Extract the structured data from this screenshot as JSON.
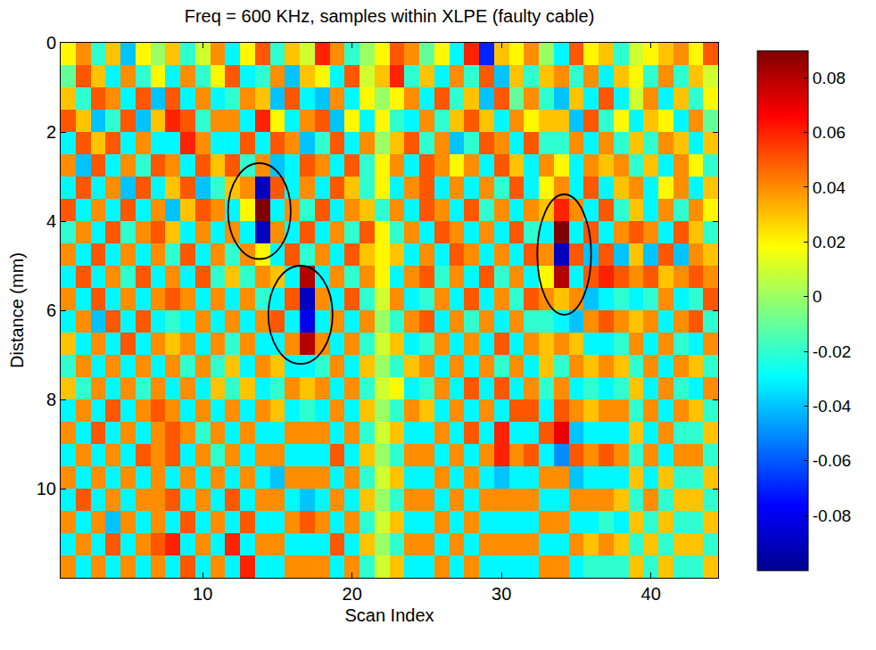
{
  "chart_data": {
    "type": "heatmap",
    "title": "Freq = 600 KHz, samples within XLPE (faulty cable)",
    "x_label": "Scan Index",
    "y_label": "Distance (mm)",
    "x": [
      1,
      2,
      3,
      4,
      5,
      6,
      7,
      8,
      9,
      10,
      11,
      12,
      13,
      14,
      15,
      16,
      17,
      18,
      19,
      20,
      21,
      22,
      23,
      24,
      25,
      26,
      27,
      28,
      29,
      30,
      31,
      32,
      33,
      34,
      35,
      36,
      37,
      38,
      39,
      40,
      41,
      42,
      43,
      44
    ],
    "y": [
      0.25,
      0.75,
      1.25,
      1.75,
      2.25,
      2.75,
      3.25,
      3.75,
      4.25,
      4.75,
      5.25,
      5.75,
      6.25,
      6.75,
      7.25,
      7.75,
      8.25,
      8.75,
      9.25,
      9.75,
      10.25,
      10.75,
      11.25,
      11.75
    ],
    "xlim": [
      0.5,
      44.5
    ],
    "ylim": [
      12,
      0
    ],
    "xticks": [
      10,
      20,
      30,
      40
    ],
    "yticks": [
      0,
      2,
      4,
      6,
      8,
      10
    ],
    "zlim": [
      -0.1,
      0.09
    ],
    "zticks": [
      -0.08,
      -0.06,
      -0.04,
      -0.02,
      0,
      0.02,
      0.04,
      0.06,
      0.08
    ],
    "highlights": [
      {
        "x0": 11.7,
        "x1": 15.9,
        "y0": 2.7,
        "y1": 4.85
      },
      {
        "x0": 14.4,
        "x1": 18.7,
        "y0": 5.0,
        "y1": 7.2
      },
      {
        "x0": 32.4,
        "x1": 36.0,
        "y0": 3.4,
        "y1": 6.1
      }
    ],
    "z": [
      [
        0.02,
        0.04,
        -0.02,
        0.03,
        -0.04,
        0.02,
        0.0,
        0.03,
        -0.02,
        0.01,
        0.04,
        -0.03,
        0.02,
        0.05,
        -0.02,
        0.03,
        0.01,
        0.06,
        0.04,
        -0.02,
        0.0,
        0.02,
        0.05,
        0.04,
        -0.01,
        0.02,
        -0.03,
        0.06,
        -0.07,
        0.03,
        0.02,
        0.04,
        0.0,
        -0.03,
        0.05,
        0.02,
        0.03,
        -0.02,
        0.01,
        0.02,
        0.03,
        0.04,
        0.02,
        0.05
      ],
      [
        -0.01,
        0.05,
        0.03,
        -0.03,
        0.04,
        -0.02,
        0.02,
        -0.03,
        0.04,
        -0.02,
        0.02,
        0.05,
        -0.03,
        -0.02,
        0.04,
        -0.04,
        0.03,
        0.02,
        -0.03,
        0.05,
        0.01,
        0.03,
        0.06,
        -0.02,
        0.03,
        -0.03,
        0.04,
        -0.02,
        0.05,
        -0.04,
        0.03,
        -0.02,
        0.03,
        0.04,
        -0.02,
        0.04,
        -0.03,
        0.03,
        0.02,
        -0.02,
        0.04,
        -0.02,
        0.03,
        0.01
      ],
      [
        0.03,
        -0.02,
        0.05,
        0.04,
        -0.03,
        0.05,
        -0.04,
        0.05,
        -0.03,
        0.04,
        -0.03,
        -0.02,
        0.04,
        0.03,
        -0.04,
        0.05,
        -0.03,
        -0.04,
        0.04,
        -0.03,
        0.02,
        0.0,
        0.02,
        0.04,
        -0.03,
        0.05,
        -0.02,
        0.03,
        -0.04,
        0.05,
        -0.01,
        0.04,
        -0.02,
        -0.04,
        0.03,
        -0.03,
        0.05,
        -0.03,
        0.01,
        0.04,
        -0.03,
        0.03,
        -0.02,
        0.02
      ],
      [
        0.05,
        0.03,
        -0.04,
        -0.02,
        0.05,
        -0.04,
        0.03,
        0.06,
        0.05,
        -0.02,
        0.04,
        0.04,
        -0.03,
        0.06,
        0.02,
        -0.03,
        0.04,
        0.05,
        -0.04,
        0.02,
        -0.03,
        0.02,
        -0.02,
        -0.03,
        0.04,
        -0.02,
        0.03,
        0.05,
        0.03,
        -0.03,
        0.04,
        0.02,
        0.03,
        0.03,
        -0.04,
        0.05,
        -0.02,
        0.02,
        -0.03,
        0.03,
        0.02,
        -0.03,
        0.04,
        -0.01
      ],
      [
        -0.03,
        0.05,
        0.03,
        0.05,
        -0.03,
        0.04,
        -0.03,
        -0.03,
        0.06,
        0.04,
        -0.03,
        -0.03,
        0.05,
        -0.03,
        0.05,
        0.04,
        -0.04,
        -0.02,
        0.05,
        -0.03,
        0.04,
        0.0,
        0.03,
        0.05,
        -0.02,
        0.04,
        -0.04,
        -0.02,
        0.05,
        0.04,
        -0.03,
        0.05,
        -0.02,
        -0.02,
        0.04,
        -0.03,
        0.04,
        -0.02,
        0.03,
        -0.02,
        0.04,
        0.03,
        -0.03,
        0.03
      ],
      [
        0.04,
        -0.04,
        0.05,
        -0.03,
        0.04,
        -0.02,
        0.05,
        0.04,
        -0.03,
        0.05,
        0.03,
        0.05,
        -0.02,
        0.04,
        -0.04,
        -0.03,
        0.05,
        0.04,
        -0.03,
        0.05,
        -0.02,
        0.02,
        0.04,
        -0.03,
        0.05,
        0.04,
        0.02,
        0.04,
        -0.03,
        0.05,
        0.03,
        -0.03,
        0.04,
        0.02,
        -0.03,
        0.04,
        0.03,
        0.04,
        -0.02,
        0.03,
        -0.03,
        0.04,
        0.02,
        -0.02
      ],
      [
        -0.03,
        0.05,
        -0.03,
        0.04,
        -0.04,
        0.05,
        -0.03,
        0.03,
        0.05,
        -0.04,
        -0.02,
        0.03,
        0.04,
        -0.09,
        0.05,
        -0.03,
        0.04,
        -0.03,
        0.05,
        0.03,
        -0.02,
        0.02,
        -0.03,
        0.04,
        0.05,
        -0.03,
        0.04,
        -0.03,
        0.04,
        -0.02,
        0.05,
        -0.03,
        0.02,
        0.04,
        -0.03,
        0.05,
        -0.03,
        0.03,
        0.04,
        -0.03,
        0.02,
        0.04,
        -0.03,
        0.03
      ],
      [
        0.05,
        -0.03,
        0.04,
        -0.03,
        0.05,
        -0.03,
        0.04,
        -0.04,
        0.03,
        0.05,
        0.04,
        -0.03,
        0.02,
        0.09,
        -0.03,
        0.04,
        -0.02,
        0.05,
        -0.03,
        0.04,
        0.03,
        -0.02,
        0.04,
        -0.03,
        0.05,
        0.04,
        -0.03,
        0.05,
        -0.02,
        0.04,
        -0.03,
        0.04,
        0.03,
        0.06,
        0.04,
        -0.03,
        0.05,
        -0.02,
        0.03,
        -0.03,
        0.04,
        -0.02,
        0.04,
        0.02
      ],
      [
        -0.02,
        0.04,
        -0.03,
        0.05,
        -0.02,
        0.04,
        0.05,
        0.03,
        -0.03,
        0.04,
        -0.03,
        0.04,
        -0.03,
        -0.09,
        0.04,
        -0.03,
        0.05,
        -0.03,
        0.04,
        -0.02,
        0.05,
        0.02,
        -0.02,
        0.04,
        -0.03,
        0.05,
        0.04,
        -0.03,
        0.04,
        -0.03,
        0.05,
        -0.02,
        -0.03,
        0.09,
        -0.03,
        0.05,
        -0.03,
        0.04,
        0.05,
        0.04,
        -0.03,
        0.05,
        0.03,
        -0.02
      ],
      [
        0.04,
        -0.03,
        0.05,
        -0.03,
        0.04,
        -0.03,
        0.04,
        -0.02,
        0.05,
        -0.03,
        0.04,
        -0.02,
        0.04,
        0.02,
        -0.03,
        0.05,
        -0.02,
        0.04,
        -0.03,
        0.05,
        0.03,
        0.02,
        0.03,
        -0.03,
        0.04,
        -0.03,
        0.05,
        0.04,
        -0.03,
        0.04,
        -0.03,
        0.05,
        0.04,
        -0.09,
        0.05,
        -0.04,
        0.05,
        -0.04,
        0.03,
        -0.04,
        0.05,
        -0.04,
        0.04,
        0.03
      ],
      [
        -0.03,
        0.05,
        -0.03,
        0.04,
        -0.02,
        0.05,
        -0.03,
        0.04,
        -0.03,
        0.05,
        -0.02,
        0.03,
        -0.02,
        0.04,
        0.03,
        -0.03,
        0.08,
        -0.03,
        0.04,
        -0.02,
        0.04,
        0.02,
        -0.03,
        0.04,
        0.05,
        -0.02,
        0.04,
        -0.03,
        0.05,
        -0.02,
        0.04,
        -0.03,
        0.02,
        0.08,
        -0.03,
        0.05,
        0.06,
        0.05,
        0.04,
        0.05,
        0.03,
        0.04,
        0.05,
        0.04
      ],
      [
        0.04,
        -0.03,
        0.05,
        -0.03,
        0.04,
        -0.03,
        0.04,
        0.05,
        0.04,
        -0.03,
        0.04,
        -0.03,
        0.04,
        -0.02,
        -0.03,
        0.05,
        -0.09,
        0.04,
        -0.03,
        0.05,
        -0.02,
        0.01,
        0.04,
        -0.03,
        -0.02,
        0.04,
        -0.03,
        0.05,
        -0.03,
        0.04,
        -0.02,
        0.05,
        0.04,
        0.03,
        0.04,
        -0.04,
        -0.03,
        -0.02,
        -0.03,
        -0.02,
        0.04,
        -0.03,
        -0.02,
        0.05
      ],
      [
        -0.03,
        0.04,
        -0.04,
        0.05,
        -0.03,
        0.05,
        -0.03,
        -0.02,
        -0.03,
        0.04,
        -0.03,
        0.04,
        -0.03,
        0.04,
        0.05,
        -0.03,
        -0.08,
        -0.03,
        0.04,
        -0.03,
        0.04,
        0.0,
        -0.02,
        0.04,
        0.05,
        -0.03,
        0.04,
        -0.02,
        0.04,
        -0.03,
        0.04,
        -0.02,
        -0.02,
        -0.03,
        -0.04,
        0.04,
        0.05,
        0.04,
        0.03,
        0.04,
        -0.03,
        0.04,
        0.05,
        -0.02
      ],
      [
        0.03,
        -0.03,
        0.04,
        -0.03,
        0.05,
        -0.03,
        0.04,
        0.03,
        0.04,
        -0.03,
        0.04,
        -0.02,
        0.04,
        -0.03,
        -0.03,
        0.04,
        0.08,
        0.04,
        -0.03,
        0.04,
        -0.02,
        0.01,
        0.03,
        -0.03,
        -0.02,
        0.04,
        -0.03,
        0.04,
        -0.03,
        0.05,
        -0.03,
        0.04,
        0.03,
        0.04,
        0.03,
        -0.03,
        -0.03,
        -0.02,
        0.04,
        -0.03,
        0.04,
        -0.02,
        -0.03,
        0.04
      ],
      [
        -0.02,
        0.04,
        -0.03,
        0.04,
        -0.03,
        0.04,
        -0.03,
        0.04,
        -0.02,
        0.04,
        -0.02,
        0.03,
        -0.03,
        0.04,
        0.03,
        -0.03,
        -0.03,
        -0.02,
        0.04,
        -0.03,
        0.03,
        0.0,
        -0.02,
        0.03,
        0.04,
        -0.03,
        0.04,
        -0.03,
        0.04,
        -0.02,
        0.04,
        -0.03,
        0.03,
        -0.02,
        0.04,
        0.03,
        0.04,
        0.03,
        -0.02,
        0.04,
        -0.03,
        0.04,
        0.03,
        -0.02
      ],
      [
        0.03,
        -0.02,
        0.04,
        -0.03,
        0.04,
        -0.02,
        0.04,
        -0.03,
        0.04,
        -0.03,
        0.03,
        -0.02,
        0.03,
        -0.03,
        -0.02,
        0.04,
        0.03,
        0.04,
        -0.03,
        0.04,
        -0.02,
        0.01,
        0.02,
        -0.03,
        -0.02,
        0.04,
        -0.03,
        0.05,
        -0.03,
        0.05,
        -0.03,
        0.04,
        -0.02,
        0.04,
        -0.03,
        -0.02,
        -0.03,
        -0.02,
        0.03,
        -0.03,
        0.04,
        -0.02,
        -0.03,
        0.04
      ],
      [
        -0.03,
        0.04,
        -0.03,
        0.05,
        -0.03,
        0.04,
        0.05,
        0.04,
        -0.03,
        0.04,
        -0.03,
        0.04,
        -0.03,
        0.04,
        0.03,
        -0.03,
        -0.02,
        -0.03,
        0.04,
        -0.03,
        0.03,
        0.0,
        -0.02,
        0.04,
        0.03,
        -0.03,
        0.04,
        -0.03,
        0.04,
        -0.03,
        0.05,
        0.05,
        -0.03,
        0.05,
        0.04,
        0.03,
        0.04,
        0.04,
        -0.02,
        0.04,
        -0.03,
        0.04,
        0.03,
        -0.02
      ],
      [
        0.04,
        -0.03,
        0.05,
        -0.03,
        0.04,
        -0.03,
        0.04,
        0.05,
        0.04,
        -0.02,
        0.04,
        -0.03,
        0.04,
        -0.03,
        -0.03,
        0.04,
        0.04,
        0.04,
        -0.03,
        0.04,
        -0.02,
        0.01,
        0.03,
        -0.03,
        -0.03,
        0.04,
        -0.03,
        0.05,
        -0.03,
        0.06,
        -0.03,
        -0.03,
        0.05,
        0.07,
        -0.04,
        -0.03,
        -0.03,
        -0.03,
        0.03,
        -0.03,
        0.04,
        -0.02,
        -0.02,
        0.03
      ],
      [
        -0.03,
        0.04,
        -0.03,
        0.04,
        -0.03,
        0.05,
        0.04,
        0.05,
        -0.03,
        0.04,
        -0.02,
        0.04,
        -0.03,
        0.04,
        0.04,
        -0.03,
        -0.03,
        -0.03,
        0.05,
        -0.03,
        0.03,
        0.0,
        -0.02,
        0.04,
        0.04,
        -0.03,
        0.04,
        -0.03,
        0.04,
        0.06,
        0.04,
        0.05,
        -0.03,
        -0.05,
        0.05,
        0.04,
        0.05,
        0.04,
        -0.02,
        0.04,
        -0.03,
        0.04,
        0.04,
        -0.02
      ],
      [
        0.04,
        -0.03,
        0.04,
        -0.03,
        0.04,
        -0.03,
        0.04,
        -0.03,
        0.04,
        -0.03,
        0.04,
        -0.03,
        0.04,
        -0.03,
        -0.04,
        0.04,
        0.04,
        0.04,
        -0.03,
        0.04,
        -0.02,
        0.01,
        0.03,
        -0.03,
        -0.03,
        0.04,
        -0.03,
        0.04,
        -0.03,
        -0.04,
        -0.03,
        -0.03,
        0.04,
        0.04,
        -0.04,
        -0.03,
        -0.03,
        -0.03,
        0.03,
        -0.03,
        0.03,
        -0.02,
        -0.02,
        0.03
      ],
      [
        -0.03,
        0.05,
        -0.03,
        0.04,
        -0.03,
        0.04,
        0.04,
        0.05,
        -0.03,
        0.04,
        -0.03,
        0.05,
        -0.03,
        0.04,
        0.04,
        -0.03,
        -0.04,
        -0.03,
        0.04,
        -0.03,
        0.03,
        0.0,
        -0.02,
        0.04,
        0.04,
        -0.03,
        0.04,
        -0.03,
        0.04,
        0.04,
        0.04,
        0.04,
        -0.03,
        -0.03,
        0.04,
        0.04,
        0.04,
        0.03,
        -0.02,
        0.04,
        -0.02,
        0.03,
        0.03,
        -0.02
      ],
      [
        0.04,
        -0.03,
        0.04,
        -0.04,
        0.04,
        -0.03,
        0.04,
        -0.03,
        0.05,
        -0.03,
        0.04,
        -0.03,
        0.05,
        -0.03,
        -0.03,
        0.04,
        0.05,
        0.04,
        -0.03,
        0.04,
        -0.02,
        0.01,
        0.03,
        -0.03,
        -0.03,
        0.04,
        -0.03,
        0.04,
        -0.03,
        -0.03,
        -0.03,
        -0.03,
        0.04,
        0.04,
        -0.03,
        -0.03,
        -0.02,
        -0.03,
        0.03,
        -0.02,
        0.03,
        -0.02,
        -0.02,
        0.03
      ],
      [
        -0.03,
        0.04,
        -0.03,
        0.05,
        -0.03,
        0.04,
        0.05,
        0.06,
        -0.03,
        0.04,
        -0.03,
        0.06,
        -0.03,
        0.04,
        0.04,
        -0.03,
        -0.03,
        -0.03,
        0.05,
        -0.03,
        0.03,
        0.0,
        -0.02,
        0.04,
        0.04,
        -0.03,
        0.04,
        -0.03,
        0.04,
        0.04,
        0.04,
        0.04,
        -0.03,
        -0.03,
        0.04,
        0.03,
        0.04,
        0.03,
        -0.02,
        0.03,
        -0.02,
        0.03,
        0.03,
        -0.02
      ],
      [
        0.04,
        -0.03,
        0.04,
        -0.03,
        0.04,
        -0.03,
        0.04,
        -0.03,
        0.05,
        -0.03,
        0.04,
        -0.03,
        0.06,
        -0.03,
        -0.03,
        0.04,
        0.04,
        0.04,
        -0.03,
        0.04,
        -0.02,
        0.01,
        0.03,
        -0.03,
        -0.03,
        0.04,
        -0.03,
        0.04,
        -0.03,
        -0.03,
        -0.03,
        -0.03,
        0.04,
        0.04,
        -0.03,
        -0.02,
        -0.02,
        -0.02,
        0.03,
        -0.02,
        0.03,
        -0.02,
        -0.02,
        0.03
      ]
    ]
  }
}
